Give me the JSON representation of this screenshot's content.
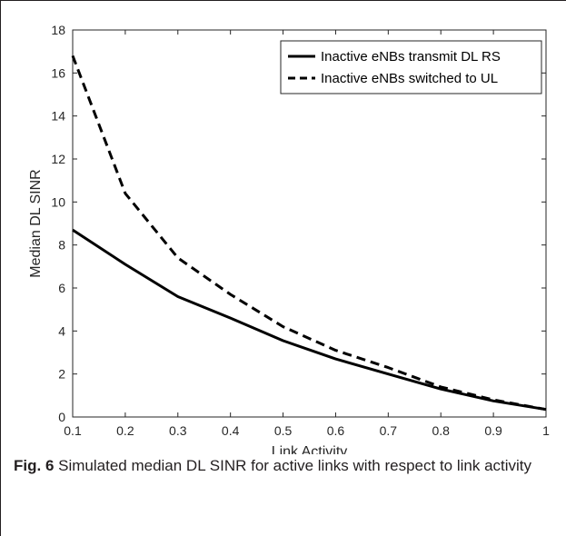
{
  "chart_data": {
    "type": "line",
    "xlabel": "Link Activity",
    "ylabel": "Median DL SINR",
    "xlim": [
      0.1,
      1
    ],
    "ylim": [
      0,
      18
    ],
    "xticks": [
      "0.1",
      "0.2",
      "0.3",
      "0.4",
      "0.5",
      "0.6",
      "0.7",
      "0.8",
      "0.9",
      "1"
    ],
    "yticks": [
      "0",
      "2",
      "4",
      "6",
      "8",
      "10",
      "12",
      "14",
      "16",
      "18"
    ],
    "grid": false,
    "legend_position": "top-right",
    "x": [
      0.1,
      0.2,
      0.3,
      0.4,
      0.5,
      0.6,
      0.7,
      0.8,
      0.9,
      1.0
    ],
    "series": [
      {
        "name": "Inactive eNBs transmit DL RS",
        "style": "solid",
        "color": "#000000",
        "values": [
          8.7,
          7.1,
          5.6,
          4.6,
          3.55,
          2.7,
          2.0,
          1.3,
          0.75,
          0.35
        ]
      },
      {
        "name": "Inactive eNBs switched to UL",
        "style": "dashed",
        "color": "#000000",
        "values": [
          16.8,
          10.4,
          7.4,
          5.7,
          4.2,
          3.1,
          2.3,
          1.4,
          0.8,
          0.35
        ]
      }
    ]
  },
  "caption": {
    "label": "Fig. 6",
    "text": " Simulated median DL SINR for active links with respect to link activity"
  }
}
